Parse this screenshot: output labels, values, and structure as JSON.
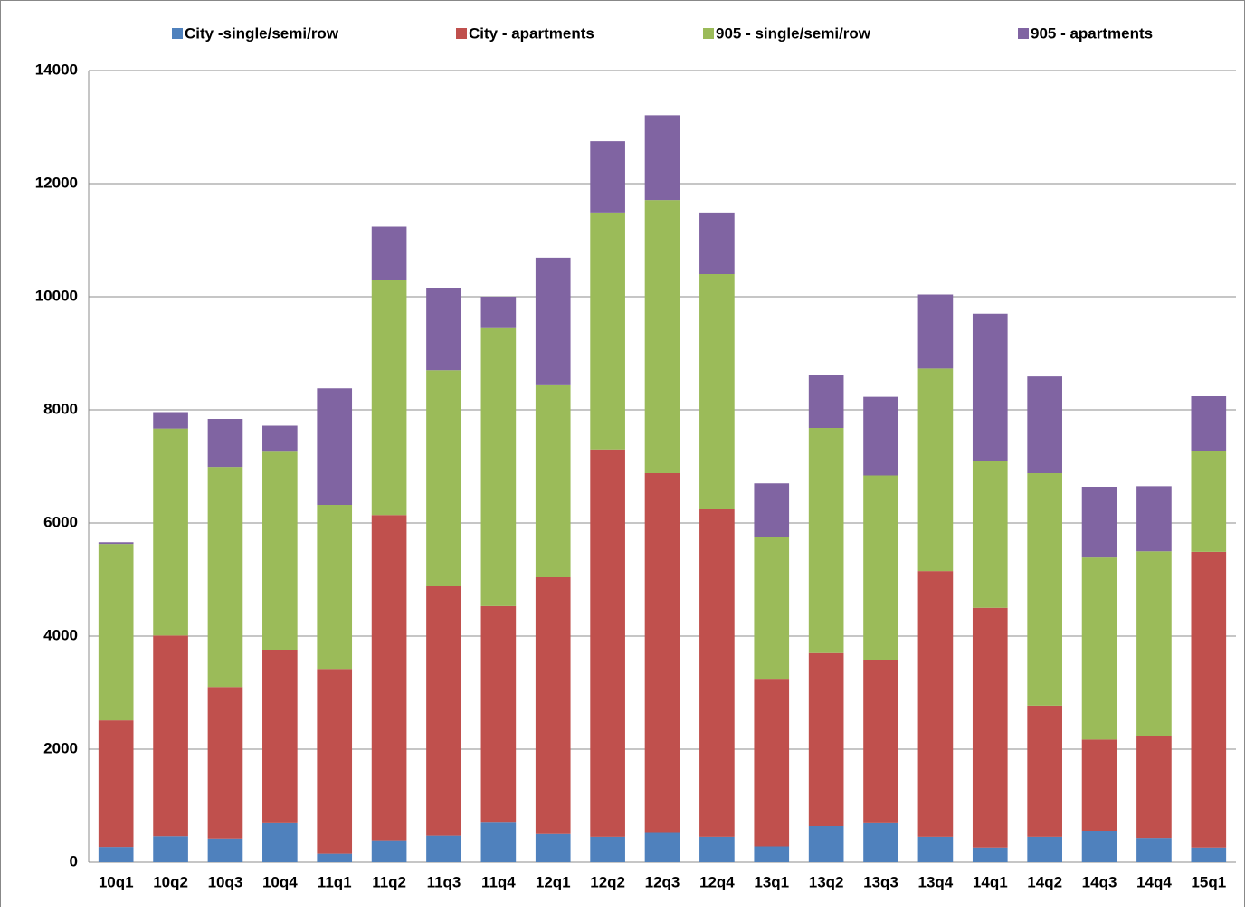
{
  "chart_data": {
    "type": "stacked_bar",
    "categories": [
      "10q1",
      "10q2",
      "10q3",
      "10q4",
      "11q1",
      "11q2",
      "11q3",
      "11q4",
      "12q1",
      "12q2",
      "12q3",
      "12q4",
      "13q1",
      "13q2",
      "13q3",
      "13q4",
      "14q1",
      "14q2",
      "14q3",
      "14q4",
      "15q1"
    ],
    "series": [
      {
        "name": "City -single/semi/row",
        "color": "#4f81bd",
        "values": [
          270,
          460,
          420,
          690,
          150,
          390,
          470,
          700,
          500,
          450,
          520,
          450,
          280,
          640,
          690,
          450,
          260,
          450,
          550,
          430,
          260
        ]
      },
      {
        "name": "City - apartments",
        "color": "#c0504d",
        "values": [
          2240,
          3550,
          2680,
          3070,
          3270,
          5750,
          4410,
          3830,
          4540,
          6850,
          6360,
          5790,
          2950,
          3060,
          2890,
          4700,
          4240,
          2320,
          1620,
          1810,
          5230
        ]
      },
      {
        "name": "905 - single/semi/row",
        "color": "#9bbb59",
        "values": [
          3120,
          3660,
          3890,
          3500,
          2900,
          4160,
          3820,
          4930,
          3410,
          4190,
          4830,
          4160,
          2530,
          3980,
          3260,
          3580,
          2590,
          4110,
          3220,
          3260,
          1790
        ]
      },
      {
        "name": "905 - apartments",
        "color": "#8064a2",
        "values": [
          30,
          290,
          850,
          460,
          2060,
          940,
          1460,
          540,
          2240,
          1260,
          1500,
          1090,
          940,
          930,
          1390,
          1310,
          2610,
          1710,
          1250,
          1150,
          960
        ]
      }
    ],
    "ylim": [
      0,
      14000
    ],
    "yticks": [
      0,
      2000,
      4000,
      6000,
      8000,
      10000,
      12000,
      14000
    ],
    "grid": true,
    "legend": "top"
  }
}
